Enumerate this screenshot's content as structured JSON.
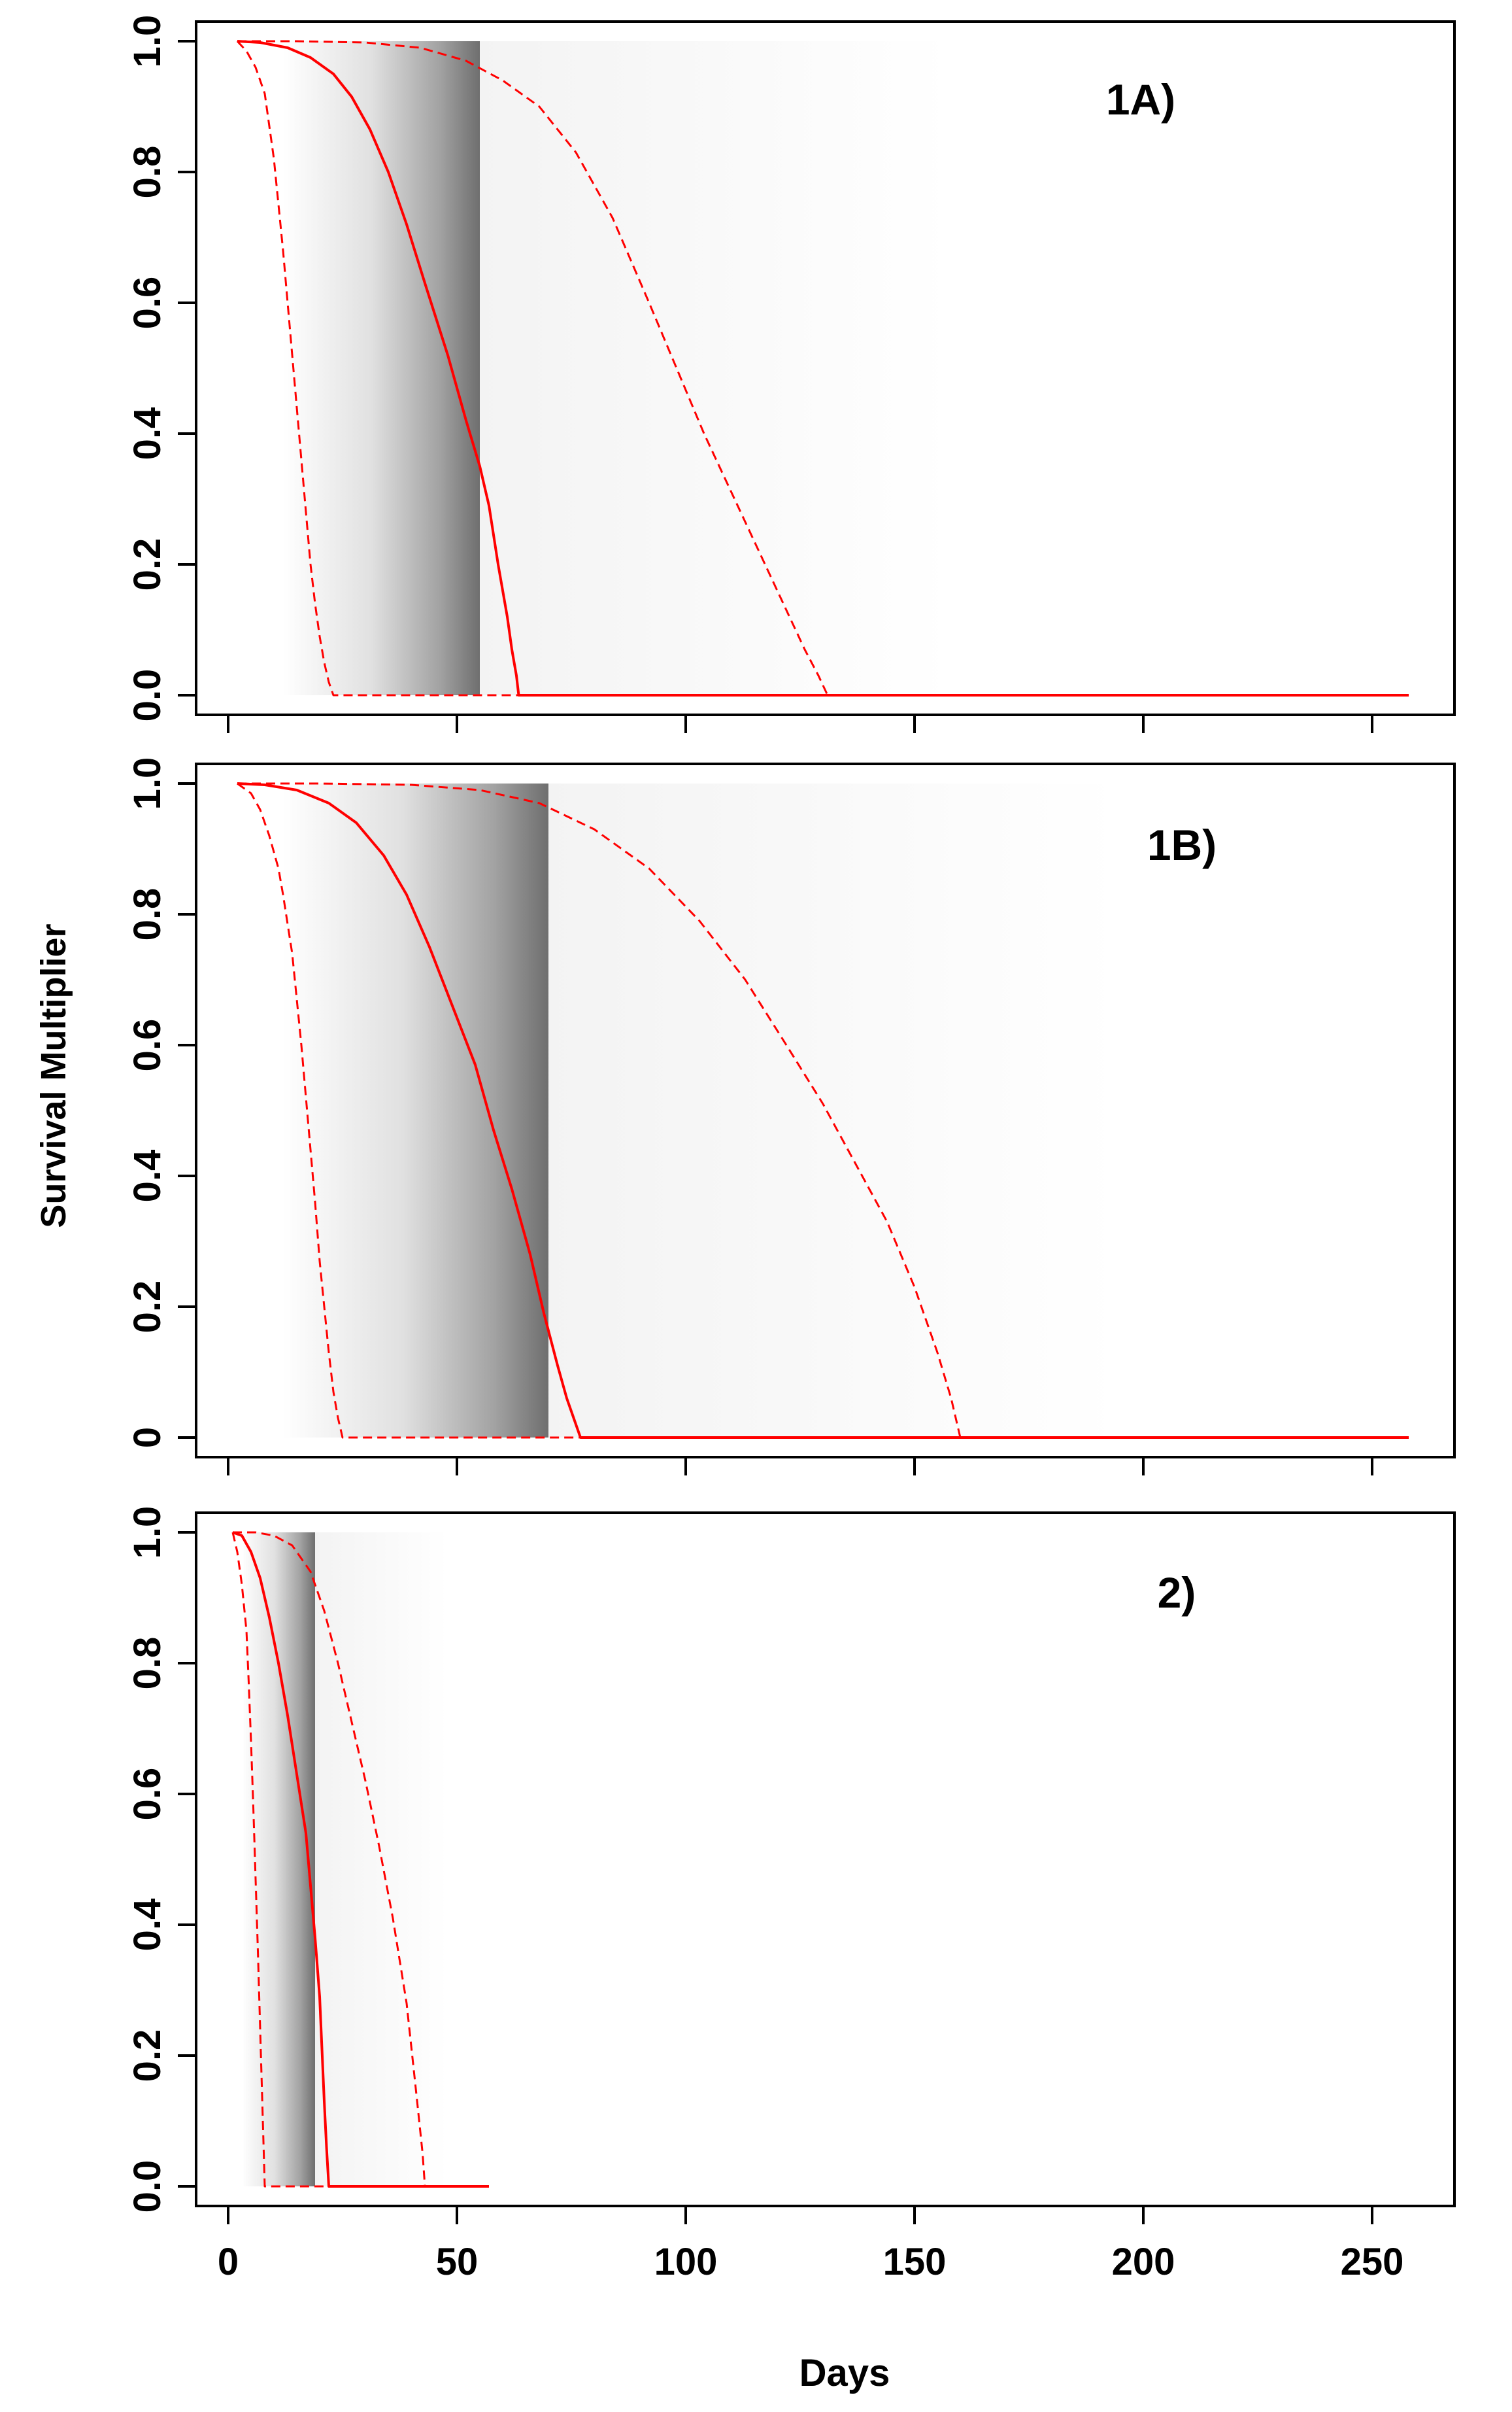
{
  "colors": {
    "median_line": "#ff0000",
    "interval_line": "#ff0000",
    "band_dark": "#555555",
    "frame": "#000000",
    "background": "#ffffff"
  },
  "axes": {
    "ylabel": "Survival Multiplier",
    "xlabel": "Days",
    "x_tick_labels": [
      "0",
      "50",
      "100",
      "150",
      "200",
      "250"
    ],
    "y_tick_labels": [
      "0.0",
      "0.2",
      "0.4",
      "0.6",
      "0.8",
      "1.0"
    ],
    "y_tick_labels_1B": [
      "0",
      "0.2",
      "0.4",
      "0.6",
      "0.8",
      "1.0"
    ]
  },
  "chart_data": [
    {
      "type": "line",
      "panel": "1A)",
      "xlim": [
        -7,
        268
      ],
      "ylim": [
        -0.03,
        1.03
      ],
      "x_ticks": [
        0,
        50,
        100,
        150,
        200,
        250
      ],
      "y_ticks": [
        0,
        0.2,
        0.4,
        0.6,
        0.8,
        1.0
      ],
      "band": {
        "x_start": 12,
        "x_end": 158,
        "peak_x": 55
      },
      "series": [
        {
          "style": "solid",
          "x": [
            2,
            7,
            13,
            18,
            23,
            27,
            31,
            35,
            39,
            43,
            48,
            52,
            55,
            57,
            59,
            61,
            62,
            63,
            63.5,
            258
          ],
          "y": [
            1.0,
            0.998,
            0.99,
            0.975,
            0.95,
            0.915,
            0.865,
            0.8,
            0.72,
            0.63,
            0.52,
            0.42,
            0.35,
            0.29,
            0.2,
            0.12,
            0.07,
            0.03,
            0,
            0
          ]
        },
        {
          "style": "dashed",
          "x": [
            2,
            4,
            6,
            8,
            9,
            10,
            11,
            12,
            13,
            14,
            15,
            16,
            17,
            18,
            19,
            20,
            21,
            22,
            23,
            258
          ],
          "y": [
            1.0,
            0.985,
            0.96,
            0.92,
            0.87,
            0.82,
            0.75,
            0.68,
            0.6,
            0.52,
            0.44,
            0.36,
            0.28,
            0.2,
            0.14,
            0.09,
            0.05,
            0.02,
            0,
            0
          ]
        },
        {
          "style": "dashed",
          "x": [
            2,
            15,
            30,
            42,
            52,
            60,
            68,
            76,
            84,
            92,
            98,
            104,
            110,
            116,
            122,
            126,
            129,
            131,
            258
          ],
          "y": [
            1.0,
            1.0,
            0.998,
            0.99,
            0.97,
            0.94,
            0.9,
            0.83,
            0.73,
            0.6,
            0.5,
            0.4,
            0.31,
            0.22,
            0.13,
            0.07,
            0.03,
            0,
            0
          ]
        }
      ]
    },
    {
      "type": "line",
      "panel": "1B)",
      "xlim": [
        -7,
        268
      ],
      "ylim": [
        -0.03,
        1.03
      ],
      "x_ticks": [
        0,
        50,
        100,
        150,
        200,
        250
      ],
      "y_ticks": [
        0,
        0.2,
        0.4,
        0.6,
        0.8,
        1.0
      ],
      "band": {
        "x_start": 12,
        "x_end": 195,
        "peak_x": 70
      },
      "series": [
        {
          "style": "solid",
          "x": [
            2,
            8,
            15,
            22,
            28,
            34,
            39,
            44,
            49,
            54,
            58,
            62,
            66,
            69,
            72,
            74,
            76,
            77,
            258
          ],
          "y": [
            1.0,
            0.998,
            0.99,
            0.97,
            0.94,
            0.89,
            0.83,
            0.75,
            0.66,
            0.57,
            0.47,
            0.38,
            0.28,
            0.19,
            0.11,
            0.06,
            0.02,
            0,
            0
          ]
        },
        {
          "style": "dashed",
          "x": [
            2,
            5,
            7,
            9,
            11,
            12,
            14,
            15,
            16,
            17,
            18,
            19,
            20,
            21,
            22,
            23,
            24,
            25,
            258
          ],
          "y": [
            1.0,
            0.985,
            0.96,
            0.92,
            0.87,
            0.83,
            0.74,
            0.67,
            0.6,
            0.52,
            0.44,
            0.36,
            0.27,
            0.2,
            0.13,
            0.07,
            0.03,
            0,
            0
          ]
        },
        {
          "style": "dashed",
          "x": [
            2,
            20,
            40,
            55,
            68,
            80,
            92,
            103,
            113,
            122,
            130,
            137,
            144,
            150,
            155,
            158,
            160,
            258
          ],
          "y": [
            1.0,
            1.0,
            0.998,
            0.99,
            0.97,
            0.93,
            0.87,
            0.79,
            0.7,
            0.6,
            0.51,
            0.42,
            0.33,
            0.23,
            0.13,
            0.06,
            0,
            0
          ]
        }
      ]
    },
    {
      "type": "line",
      "panel": "2)",
      "xlim": [
        -7,
        268
      ],
      "ylim": [
        -0.03,
        1.03
      ],
      "x_ticks": [
        0,
        50,
        100,
        150,
        200,
        250
      ],
      "y_ticks": [
        0,
        0.2,
        0.4,
        0.6,
        0.8,
        1.0
      ],
      "band": {
        "x_start": 3,
        "x_end": 48,
        "peak_x": 19
      },
      "series": [
        {
          "style": "solid",
          "x": [
            1,
            3,
            5,
            7,
            9,
            11,
            13,
            15,
            17,
            18,
            19,
            20,
            20.5,
            21,
            21.5,
            22,
            57
          ],
          "y": [
            1.0,
            0.995,
            0.97,
            0.93,
            0.87,
            0.8,
            0.72,
            0.63,
            0.54,
            0.46,
            0.38,
            0.29,
            0.21,
            0.13,
            0.06,
            0,
            0
          ]
        },
        {
          "style": "dashed",
          "x": [
            1,
            2,
            3,
            4,
            4.5,
            5,
            5.5,
            6,
            6.5,
            7,
            7.5,
            8,
            57
          ],
          "y": [
            1.0,
            0.97,
            0.92,
            0.85,
            0.77,
            0.68,
            0.58,
            0.47,
            0.36,
            0.24,
            0.12,
            0,
            0
          ]
        },
        {
          "style": "dashed",
          "x": [
            1,
            6,
            10,
            14,
            18,
            21,
            24,
            27,
            30,
            33,
            36,
            39,
            41,
            42.5,
            43,
            57
          ],
          "y": [
            1.0,
            1.0,
            0.995,
            0.98,
            0.94,
            0.88,
            0.8,
            0.71,
            0.62,
            0.52,
            0.41,
            0.28,
            0.15,
            0.05,
            0,
            0
          ]
        }
      ]
    }
  ],
  "panel_labels": [
    "1A)",
    "1B)",
    "2)"
  ]
}
